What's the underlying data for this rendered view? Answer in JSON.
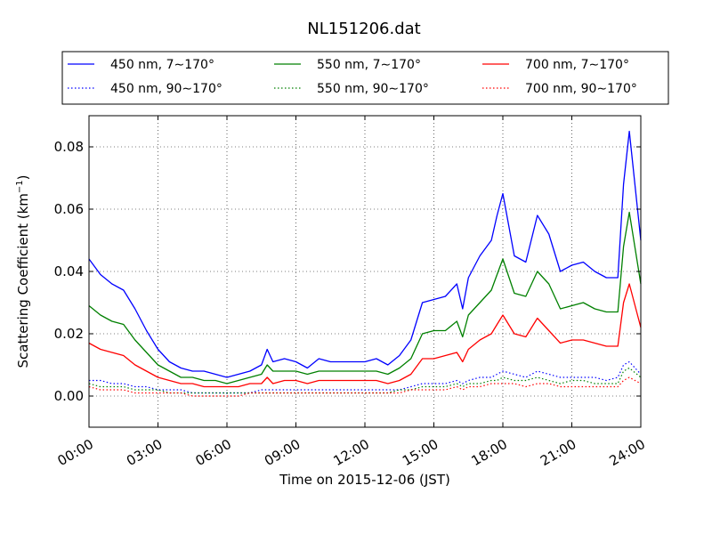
{
  "chart_data": {
    "type": "line",
    "title": "NL151206.dat",
    "xlabel": "Time on 2015-12-06 (JST)",
    "ylabel": "Scattering Coefficient (km⁻¹)",
    "ylabel_base": "Scattering Coefficient (km",
    "ylabel_sup": "−1",
    "ylabel_end": ")",
    "xlim": [
      0,
      24
    ],
    "ylim": [
      -0.01,
      0.09
    ],
    "x_ticks": [
      0,
      3,
      6,
      9,
      12,
      15,
      18,
      21,
      24
    ],
    "x_tick_labels": [
      "00:00",
      "03:00",
      "06:00",
      "09:00",
      "12:00",
      "15:00",
      "18:00",
      "21:00",
      "24:00"
    ],
    "y_ticks": [
      0,
      0.02,
      0.04,
      0.06,
      0.08
    ],
    "y_tick_labels": [
      "0.00",
      "0.02",
      "0.04",
      "0.06",
      "0.08"
    ],
    "grid": true,
    "legend_position": "top",
    "legend_columns": 3,
    "x_hours": [
      0,
      0.5,
      1,
      1.5,
      2,
      2.5,
      3,
      3.5,
      4,
      4.5,
      5,
      5.5,
      6,
      6.5,
      7,
      7.5,
      7.75,
      8,
      8.5,
      9,
      9.5,
      10,
      10.5,
      11,
      11.5,
      12,
      12.5,
      13,
      13.5,
      14,
      14.5,
      15,
      15.5,
      16,
      16.25,
      16.5,
      17,
      17.5,
      17.75,
      18,
      18.5,
      19,
      19.5,
      20,
      20.5,
      21,
      21.5,
      22,
      22.5,
      23,
      23.25,
      23.5,
      24
    ],
    "series": [
      {
        "name": "450 nm, 7∼170°",
        "color": "#0000ff",
        "dash": "solid",
        "values": [
          0.044,
          0.039,
          0.036,
          0.034,
          0.028,
          0.021,
          0.015,
          0.011,
          0.009,
          0.008,
          0.008,
          0.007,
          0.006,
          0.007,
          0.008,
          0.01,
          0.015,
          0.011,
          0.012,
          0.011,
          0.009,
          0.012,
          0.011,
          0.011,
          0.011,
          0.011,
          0.012,
          0.01,
          0.013,
          0.018,
          0.03,
          0.031,
          0.032,
          0.036,
          0.028,
          0.038,
          0.045,
          0.05,
          0.058,
          0.065,
          0.045,
          0.043,
          0.058,
          0.052,
          0.04,
          0.042,
          0.043,
          0.04,
          0.038,
          0.038,
          0.068,
          0.085,
          0.05
        ]
      },
      {
        "name": "450 nm, 90∼170°",
        "color": "#0000ff",
        "dash": "dotted",
        "values": [
          0.005,
          0.005,
          0.004,
          0.004,
          0.003,
          0.003,
          0.002,
          0.002,
          0.002,
          0.001,
          0.001,
          0.001,
          0.001,
          0.001,
          0.001,
          0.002,
          0.002,
          0.002,
          0.002,
          0.002,
          0.002,
          0.002,
          0.002,
          0.002,
          0.002,
          0.002,
          0.002,
          0.002,
          0.002,
          0.003,
          0.004,
          0.004,
          0.004,
          0.005,
          0.004,
          0.005,
          0.006,
          0.006,
          0.007,
          0.008,
          0.007,
          0.006,
          0.008,
          0.007,
          0.006,
          0.006,
          0.006,
          0.006,
          0.005,
          0.006,
          0.01,
          0.011,
          0.007
        ]
      },
      {
        "name": "550 nm, 7∼170°",
        "color": "#008000",
        "dash": "solid",
        "values": [
          0.029,
          0.026,
          0.024,
          0.023,
          0.018,
          0.014,
          0.01,
          0.008,
          0.006,
          0.006,
          0.005,
          0.005,
          0.004,
          0.005,
          0.006,
          0.007,
          0.01,
          0.008,
          0.008,
          0.008,
          0.007,
          0.008,
          0.008,
          0.008,
          0.008,
          0.008,
          0.008,
          0.007,
          0.009,
          0.012,
          0.02,
          0.021,
          0.021,
          0.024,
          0.019,
          0.026,
          0.03,
          0.034,
          0.039,
          0.044,
          0.033,
          0.032,
          0.04,
          0.036,
          0.028,
          0.029,
          0.03,
          0.028,
          0.027,
          0.027,
          0.048,
          0.059,
          0.036
        ]
      },
      {
        "name": "550 nm, 90∼170°",
        "color": "#008000",
        "dash": "dotted",
        "values": [
          0.004,
          0.003,
          0.003,
          0.003,
          0.002,
          0.002,
          0.002,
          0.001,
          0.001,
          0.001,
          0.001,
          0.001,
          0.001,
          0.001,
          0.001,
          0.001,
          0.001,
          0.001,
          0.001,
          0.001,
          0.001,
          0.001,
          0.001,
          0.001,
          0.001,
          0.001,
          0.001,
          0.001,
          0.002,
          0.002,
          0.003,
          0.003,
          0.003,
          0.004,
          0.003,
          0.004,
          0.004,
          0.005,
          0.005,
          0.006,
          0.005,
          0.005,
          0.006,
          0.005,
          0.004,
          0.005,
          0.005,
          0.004,
          0.004,
          0.004,
          0.008,
          0.009,
          0.006
        ]
      },
      {
        "name": "700 nm, 7∼170°",
        "color": "#ff0000",
        "dash": "solid",
        "values": [
          0.017,
          0.015,
          0.014,
          0.013,
          0.01,
          0.008,
          0.006,
          0.005,
          0.004,
          0.004,
          0.003,
          0.003,
          0.003,
          0.003,
          0.004,
          0.004,
          0.006,
          0.004,
          0.005,
          0.005,
          0.004,
          0.005,
          0.005,
          0.005,
          0.005,
          0.005,
          0.005,
          0.004,
          0.005,
          0.007,
          0.012,
          0.012,
          0.013,
          0.014,
          0.011,
          0.015,
          0.018,
          0.02,
          0.023,
          0.026,
          0.02,
          0.019,
          0.025,
          0.021,
          0.017,
          0.018,
          0.018,
          0.017,
          0.016,
          0.016,
          0.03,
          0.036,
          0.022
        ]
      },
      {
        "name": "700 nm, 90∼170°",
        "color": "#ff0000",
        "dash": "dotted",
        "values": [
          0.003,
          0.002,
          0.002,
          0.002,
          0.001,
          0.001,
          0.001,
          0.001,
          0.001,
          0.0,
          0.0,
          0.0,
          0.0,
          0.0,
          0.001,
          0.001,
          0.001,
          0.001,
          0.001,
          0.001,
          0.001,
          0.001,
          0.001,
          0.001,
          0.001,
          0.001,
          0.001,
          0.001,
          0.001,
          0.002,
          0.002,
          0.002,
          0.002,
          0.003,
          0.002,
          0.003,
          0.003,
          0.004,
          0.004,
          0.004,
          0.004,
          0.003,
          0.004,
          0.004,
          0.003,
          0.003,
          0.003,
          0.003,
          0.003,
          0.003,
          0.005,
          0.006,
          0.004
        ]
      }
    ]
  }
}
